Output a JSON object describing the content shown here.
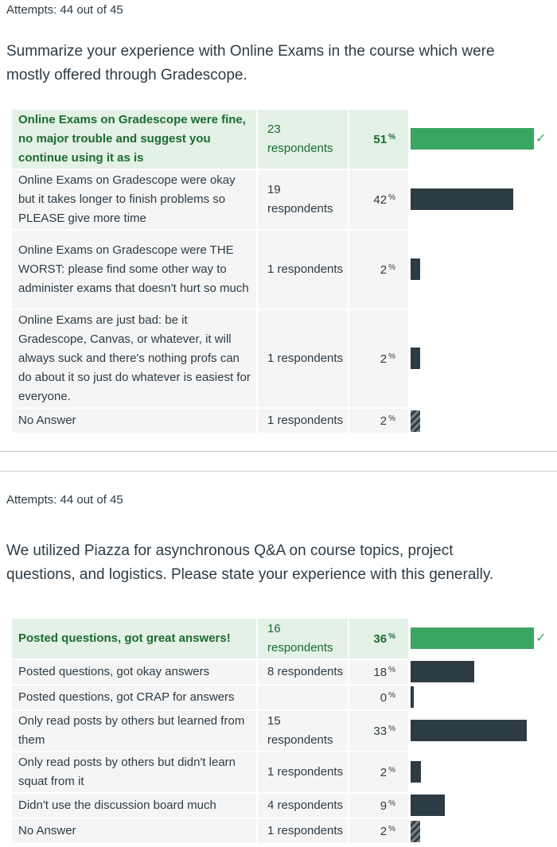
{
  "questions": [
    {
      "attempts": "Attempts: 44 out of 45",
      "text": "Summarize your experience with Online Exams in the course which were mostly offered through Gradescope.",
      "answers": [
        {
          "label": "Online Exams on Gradescope were fine, no major trouble and suggest you continue using it as is",
          "respondents": "23 respondents",
          "percent": "51",
          "percent_value": 51,
          "correct": true
        },
        {
          "label": "Online Exams on Gradescope were okay but it takes longer to finish problems so PLEASE give more time",
          "respondents": "19 respondents",
          "percent": "42",
          "percent_value": 42,
          "correct": false
        },
        {
          "label": "Online Exams on Gradescope were THE WORST: please find some other way to administer exams that doesn't hurt so much",
          "respondents": "1 respondents",
          "percent": "2",
          "percent_value": 2,
          "correct": false
        },
        {
          "label": "Online Exams are just bad: be it Gradescope, Canvas, or whatever, it will always suck and there's nothing profs can do about it so just do whatever is easiest for everyone.",
          "respondents": "1 respondents",
          "percent": "2",
          "percent_value": 2,
          "correct": false
        },
        {
          "label": "No Answer",
          "respondents": "1 respondents",
          "percent": "2",
          "percent_value": 2,
          "correct": false,
          "no_answer": true
        }
      ]
    },
    {
      "attempts": "Attempts: 44 out of 45",
      "text": "We utilized Piazza for asynchronous Q&A on course topics, project questions, and logistics. Please state your experience with this generally.",
      "answers": [
        {
          "label": "Posted questions, got great answers!",
          "respondents": "16 respondents",
          "percent": "36",
          "percent_value": 36,
          "correct": true
        },
        {
          "label": "Posted questions, got okay answers",
          "respondents": "8 respondents",
          "percent": "18",
          "percent_value": 18,
          "correct": false
        },
        {
          "label": "Posted questions, got CRAP for answers",
          "respondents": "",
          "percent": "0",
          "percent_value": 0,
          "correct": false
        },
        {
          "label": "Only read posts by others but learned from them",
          "respondents": "15 respondents",
          "percent": "33",
          "percent_value": 33,
          "correct": false
        },
        {
          "label": "Only read posts by others but didn't learn squat from it",
          "respondents": "1 respondents",
          "percent": "2",
          "percent_value": 2,
          "correct": false
        },
        {
          "label": "Didn't use the discussion board much",
          "respondents": "4 respondents",
          "percent": "9",
          "percent_value": 9,
          "correct": false
        },
        {
          "label": "No Answer",
          "respondents": "1 respondents",
          "percent": "2",
          "percent_value": 2,
          "correct": false,
          "no_answer": true
        }
      ]
    }
  ],
  "percent_symbol": "%",
  "colors": {
    "correct_bar": "#3aa664",
    "bar": "#2d3b45",
    "correct_bg": "#e3f1e6",
    "row_bg": "#f5f5f5"
  },
  "icons": {
    "correct": "check-icon"
  }
}
